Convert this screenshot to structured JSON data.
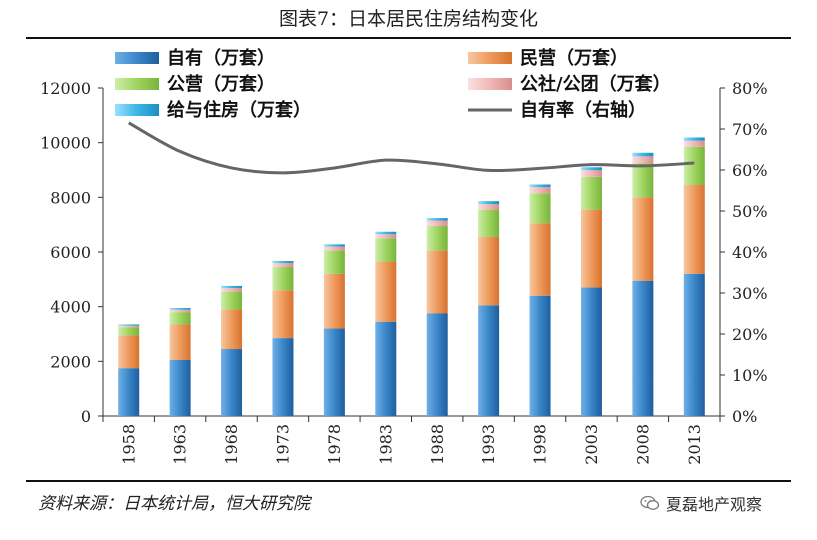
{
  "header": {
    "title": "图表7：日本居民住房结构变化"
  },
  "footer": {
    "source": "资料来源：日本统计局，恒大研究院",
    "watermark": "夏磊地产观察"
  },
  "chart_data": {
    "type": "bar",
    "stacked": true,
    "categories": [
      "1958",
      "1963",
      "1968",
      "1973",
      "1978",
      "1983",
      "1988",
      "1993",
      "1998",
      "2003",
      "2008",
      "2013"
    ],
    "ylim_left": [
      0,
      12000
    ],
    "yticks_left": [
      0,
      2000,
      4000,
      6000,
      8000,
      10000,
      12000
    ],
    "ylim_right": [
      0,
      80
    ],
    "yticks_right": [
      "0%",
      "10%",
      "20%",
      "30%",
      "40%",
      "50%",
      "60%",
      "70%",
      "80%"
    ],
    "series": [
      {
        "name": "自有（万套）",
        "color": "#3a86c8",
        "values": [
          1750,
          2050,
          2450,
          2850,
          3200,
          3450,
          3750,
          4050,
          4400,
          4700,
          4950,
          5200
        ]
      },
      {
        "name": "民营（万套）",
        "color": "#ee9a5d",
        "values": [
          1200,
          1300,
          1450,
          1750,
          2000,
          2200,
          2300,
          2500,
          2650,
          2850,
          3050,
          3250
        ]
      },
      {
        "name": "公营（万套）",
        "color": "#9fd45f",
        "values": [
          300,
          450,
          650,
          850,
          850,
          850,
          900,
          1000,
          1100,
          1200,
          1250,
          1400
        ]
      },
      {
        "name": "公社/公团（万套）",
        "color": "#f2b7b7",
        "values": [
          60,
          90,
          130,
          140,
          150,
          150,
          200,
          200,
          220,
          240,
          250,
          220
        ]
      },
      {
        "name": "给与住房（万套）",
        "color": "#3ab6e6",
        "values": [
          40,
          60,
          80,
          80,
          80,
          90,
          90,
          110,
          100,
          110,
          130,
          120
        ]
      }
    ],
    "line": {
      "name": "自有率（右轴）",
      "color": "#666666",
      "values": [
        71.5,
        64.5,
        60.5,
        59.3,
        60.5,
        62.4,
        61.5,
        59.9,
        60.4,
        61.3,
        61.0,
        61.7
      ]
    }
  }
}
